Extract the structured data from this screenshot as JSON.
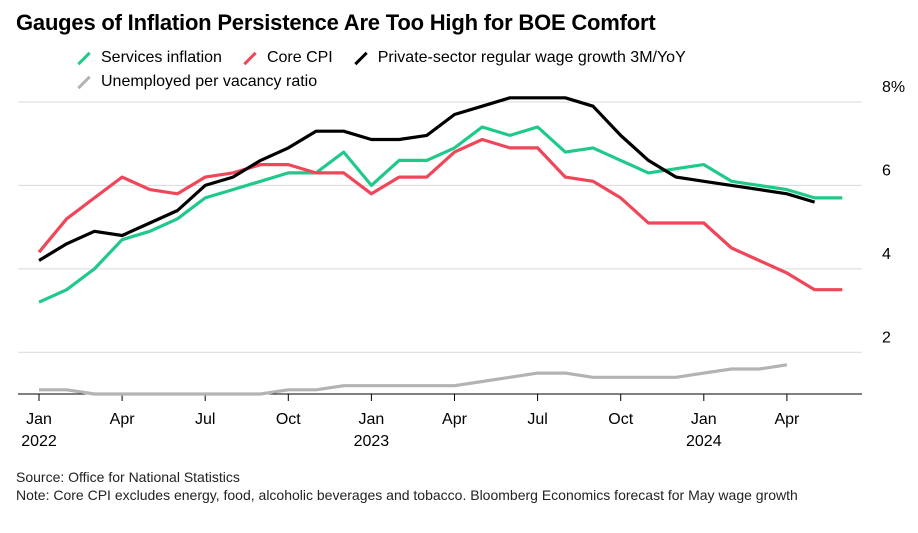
{
  "title": "Gauges of Inflation Persistence Are Too High for BOE Comfort",
  "footer": {
    "source": "Source: Office for National Statistics",
    "note": "Note: Core CPI excludes energy, food, alcoholic beverages and tobacco. Bloomberg Economics forecast for May wage growth"
  },
  "chart_data": {
    "type": "line",
    "title": "Gauges of Inflation Persistence Are Too High for BOE Comfort",
    "xlabel": "",
    "ylabel": "",
    "ylim": [
      1,
      8
    ],
    "y_ticks": [
      {
        "value": 8,
        "label": "8%"
      },
      {
        "value": 6,
        "label": "6"
      },
      {
        "value": 4,
        "label": "4"
      },
      {
        "value": 2,
        "label": "2"
      }
    ],
    "x_ticks": [
      {
        "label": "Jan",
        "year": "2022"
      },
      {
        "label": "Apr",
        "year": ""
      },
      {
        "label": "Jul",
        "year": ""
      },
      {
        "label": "Oct",
        "year": ""
      },
      {
        "label": "Jan",
        "year": "2023"
      },
      {
        "label": "Apr",
        "year": ""
      },
      {
        "label": "Jul",
        "year": ""
      },
      {
        "label": "Oct",
        "year": ""
      },
      {
        "label": "Jan",
        "year": "2024"
      },
      {
        "label": "Apr",
        "year": ""
      }
    ],
    "x": [
      "2022-01",
      "2022-02",
      "2022-03",
      "2022-04",
      "2022-05",
      "2022-06",
      "2022-07",
      "2022-08",
      "2022-09",
      "2022-10",
      "2022-11",
      "2022-12",
      "2023-01",
      "2023-02",
      "2023-03",
      "2023-04",
      "2023-05",
      "2023-06",
      "2023-07",
      "2023-08",
      "2023-09",
      "2023-10",
      "2023-11",
      "2023-12",
      "2024-01",
      "2024-02",
      "2024-03",
      "2024-04",
      "2024-05",
      "2024-06"
    ],
    "grid": true,
    "legend_position": "top-left",
    "series": [
      {
        "name": "Services inflation",
        "color": "#1fc98a",
        "values": [
          3.2,
          3.5,
          4.0,
          4.7,
          4.9,
          5.2,
          5.7,
          5.9,
          6.1,
          6.3,
          6.3,
          6.8,
          6.0,
          6.6,
          6.6,
          6.9,
          7.4,
          7.2,
          7.4,
          6.8,
          6.9,
          6.6,
          6.3,
          6.4,
          6.5,
          6.1,
          6.0,
          5.9,
          5.7,
          5.7
        ]
      },
      {
        "name": "Core CPI",
        "color": "#f0465a",
        "values": [
          4.4,
          5.2,
          5.7,
          6.2,
          5.9,
          5.8,
          6.2,
          6.3,
          6.5,
          6.5,
          6.3,
          6.3,
          5.8,
          6.2,
          6.2,
          6.8,
          7.1,
          6.9,
          6.9,
          6.2,
          6.1,
          5.7,
          5.1,
          5.1,
          5.1,
          4.5,
          4.2,
          3.9,
          3.5,
          3.5
        ]
      },
      {
        "name": "Private-sector regular wage growth 3M/YoY",
        "color": "#000000",
        "values": [
          4.2,
          4.6,
          4.9,
          4.8,
          5.1,
          5.4,
          6.0,
          6.2,
          6.6,
          6.9,
          7.3,
          7.3,
          7.1,
          7.1,
          7.2,
          7.7,
          7.9,
          8.1,
          8.1,
          8.1,
          7.9,
          7.2,
          6.6,
          6.2,
          6.1,
          6.0,
          5.9,
          5.8,
          5.6,
          null
        ]
      },
      {
        "name": "Unemployed per vacancy ratio",
        "color": "#b3b3b3",
        "values": [
          1.1,
          1.1,
          1.0,
          1.0,
          1.0,
          1.0,
          1.0,
          1.0,
          1.0,
          1.1,
          1.1,
          1.2,
          1.2,
          1.2,
          1.2,
          1.2,
          1.3,
          1.4,
          1.5,
          1.5,
          1.4,
          1.4,
          1.4,
          1.4,
          1.5,
          1.6,
          1.6,
          1.7,
          null,
          null
        ]
      }
    ]
  }
}
